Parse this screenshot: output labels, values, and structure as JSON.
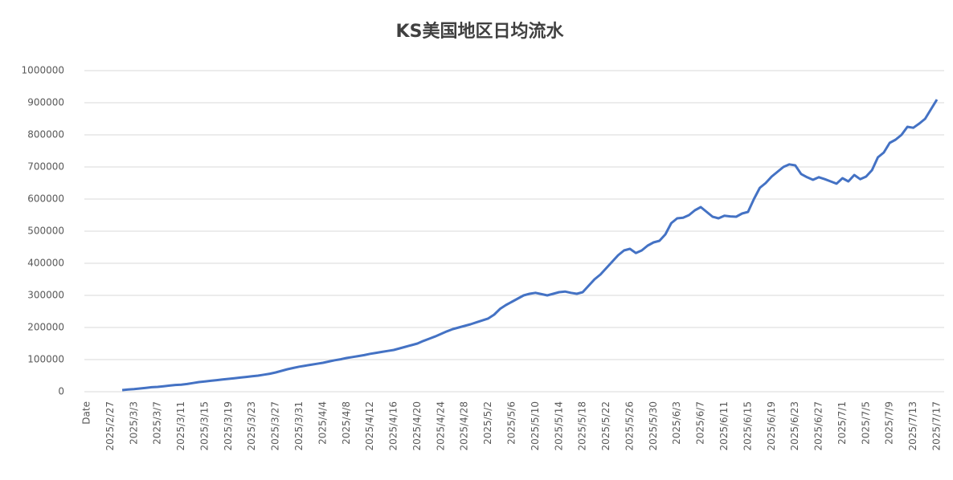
{
  "chart_data": {
    "type": "line",
    "title": "KS美国地区日均流水",
    "categories": [
      "Date",
      null,
      null,
      null,
      "2025/2/27",
      null,
      null,
      null,
      "2025/3/3",
      null,
      null,
      null,
      "2025/3/7",
      null,
      null,
      null,
      "2025/3/11",
      null,
      null,
      null,
      "2025/3/15",
      null,
      null,
      null,
      "2025/3/19",
      null,
      null,
      null,
      "2025/3/23",
      null,
      null,
      null,
      "2025/3/27",
      null,
      null,
      null,
      "2025/3/31",
      null,
      null,
      null,
      "2025/4/4",
      null,
      null,
      null,
      "2025/4/8",
      null,
      null,
      null,
      "2025/4/12",
      null,
      null,
      null,
      "2025/4/16",
      null,
      null,
      null,
      "2025/4/20",
      null,
      null,
      null,
      "2025/4/24",
      null,
      null,
      null,
      "2025/4/28",
      null,
      null,
      null,
      "2025/5/2",
      null,
      null,
      null,
      "2025/5/6",
      null,
      null,
      null,
      "2025/5/10",
      null,
      null,
      null,
      "2025/5/14",
      null,
      null,
      null,
      "2025/5/18",
      null,
      null,
      null,
      "2025/5/22",
      null,
      null,
      null,
      "2025/5/26",
      null,
      null,
      null,
      "2025/5/30",
      null,
      null,
      null,
      "2025/6/3",
      null,
      null,
      null,
      "2025/6/7",
      null,
      null,
      null,
      "2025/6/11",
      null,
      null,
      null,
      "2025/6/15",
      null,
      null,
      null,
      "2025/6/19",
      null,
      null,
      null,
      "2025/6/23",
      null,
      null,
      null,
      "2025/6/27",
      null,
      null,
      null,
      "2025/7/1",
      null,
      null,
      null,
      "2025/7/5",
      null,
      null,
      null,
      "2025/7/9",
      null,
      null,
      null,
      "2025/7/13",
      null,
      null,
      null,
      "2025/7/17"
    ],
    "series": [
      {
        "color": "#4472c4",
        "values": [
          null,
          null,
          null,
          null,
          null,
          null,
          5000,
          7000,
          8000,
          10000,
          12000,
          14000,
          15000,
          17000,
          19000,
          21000,
          22000,
          24000,
          27000,
          30000,
          32000,
          34000,
          36000,
          38000,
          40000,
          42000,
          44000,
          46000,
          48000,
          50000,
          53000,
          56000,
          60000,
          65000,
          70000,
          74000,
          78000,
          81000,
          84000,
          87000,
          90000,
          94000,
          98000,
          101000,
          105000,
          108000,
          111000,
          114000,
          118000,
          121000,
          124000,
          127000,
          130000,
          135000,
          140000,
          145000,
          150000,
          158000,
          165000,
          172000,
          180000,
          188000,
          195000,
          200000,
          205000,
          210000,
          216000,
          222000,
          228000,
          240000,
          258000,
          270000,
          280000,
          290000,
          300000,
          305000,
          308000,
          304000,
          300000,
          305000,
          310000,
          312000,
          308000,
          305000,
          310000,
          330000,
          350000,
          365000,
          385000,
          405000,
          425000,
          440000,
          445000,
          432000,
          440000,
          455000,
          465000,
          470000,
          490000,
          525000,
          540000,
          542000,
          550000,
          565000,
          575000,
          560000,
          545000,
          540000,
          548000,
          546000,
          545000,
          555000,
          560000,
          600000,
          635000,
          650000,
          670000,
          685000,
          700000,
          708000,
          705000,
          678000,
          668000,
          660000,
          668000,
          662000,
          655000,
          648000,
          665000,
          655000,
          675000,
          662000,
          670000,
          690000,
          730000,
          745000,
          775000,
          785000,
          800000,
          825000,
          822000,
          835000,
          850000,
          880000,
          910000
        ]
      }
    ],
    "ylim": [
      0,
      1000000
    ],
    "yticks": [
      0,
      100000,
      200000,
      300000,
      400000,
      500000,
      600000,
      700000,
      800000,
      900000,
      1000000
    ],
    "grid": true
  }
}
